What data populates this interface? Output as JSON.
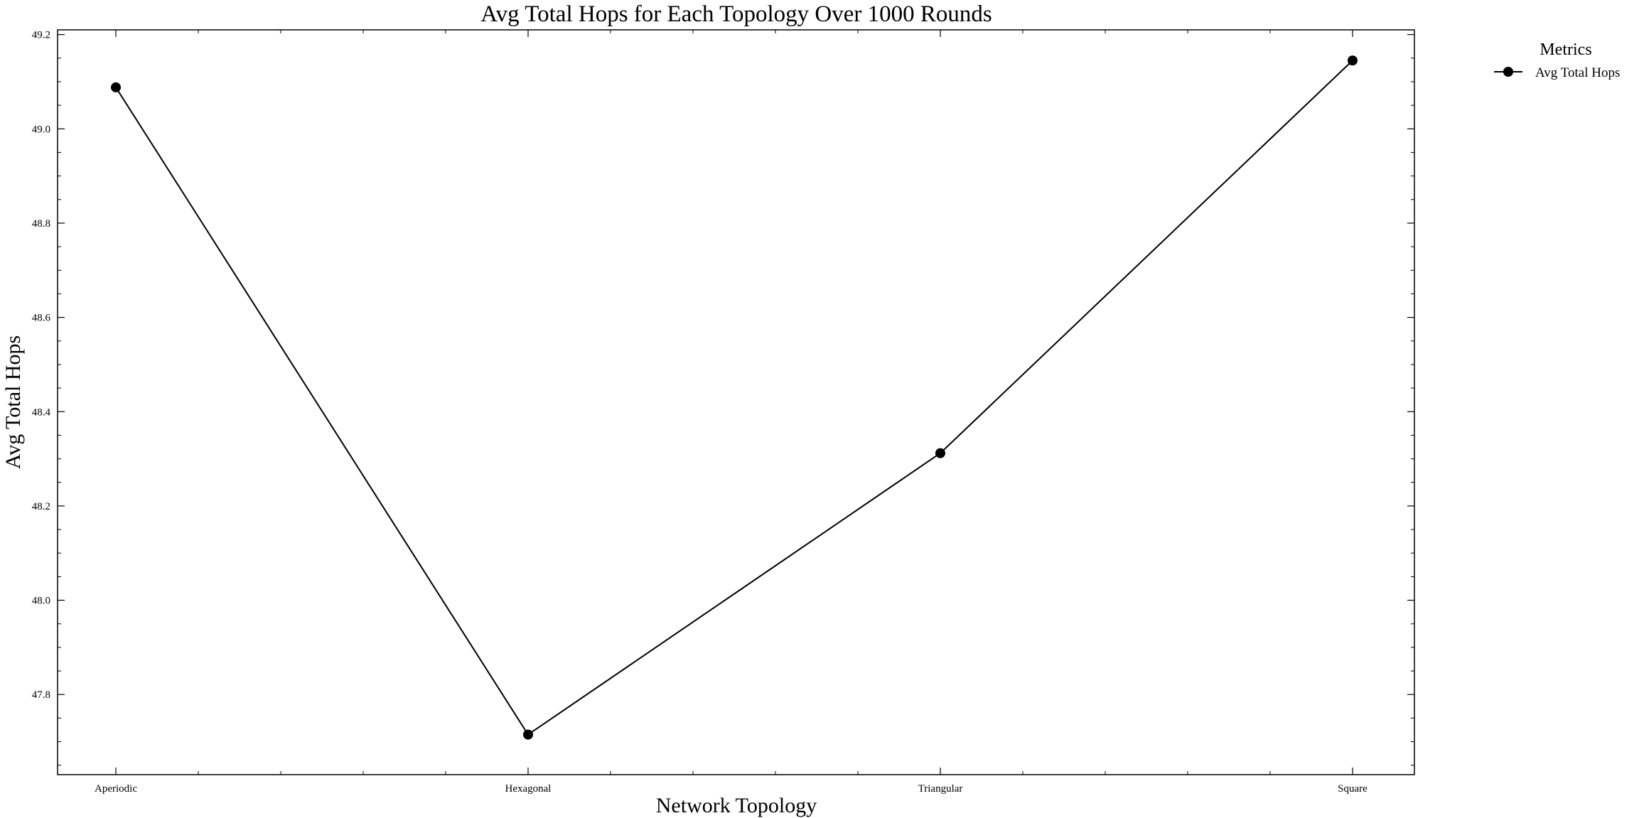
{
  "chart_data": {
    "type": "line",
    "title": "Avg Total Hops for Each Topology Over 1000 Rounds",
    "xlabel": "Network Topology",
    "ylabel": "Avg Total Hops",
    "categories": [
      "Aperiodic",
      "Hexagonal",
      "Triangular",
      "Square"
    ],
    "series": [
      {
        "name": "Avg Total Hops",
        "values": [
          49.088,
          47.715,
          48.312,
          49.145
        ],
        "color": "#000000",
        "marker": "circle"
      }
    ],
    "ylim": [
      47.63,
      49.21
    ],
    "yticks": [
      "47.8",
      "48.0",
      "48.2",
      "48.4",
      "48.6",
      "48.8",
      "49.0",
      "49.2"
    ],
    "grid": false,
    "legend": {
      "title": "Metrics",
      "placement": "outside-top-right"
    }
  }
}
